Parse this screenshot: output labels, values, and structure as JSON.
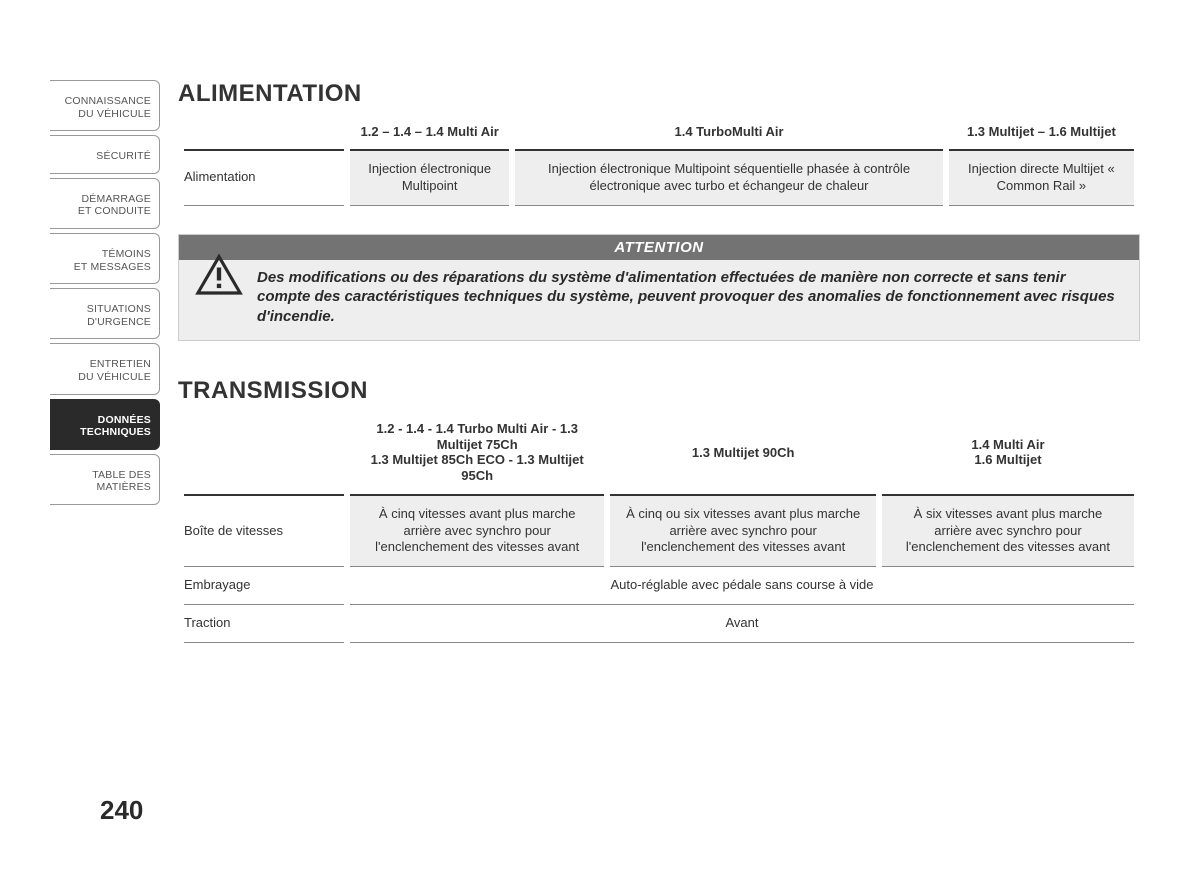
{
  "page_number": "240",
  "colors": {
    "text": "#333333",
    "bg": "#ffffff",
    "cell_bg": "#eeeeee",
    "banner_bg": "#737373",
    "banner_fg": "#ffffff",
    "active_tab_bg": "#2a2a2a",
    "active_tab_fg": "#ffffff",
    "rule": "#333333"
  },
  "typography": {
    "section_title_pt": 24,
    "body_pt": 13,
    "attention_pt": 15,
    "tab_pt": 10.5
  },
  "sidebar": {
    "tabs": [
      {
        "l1": "CONNAISSANCE",
        "l2": "DU VÉHICULE",
        "active": false
      },
      {
        "l1": "",
        "l2": "SÉCURITÉ",
        "active": false
      },
      {
        "l1": "DÉMARRAGE",
        "l2": "ET CONDUITE",
        "active": false
      },
      {
        "l1": "TÉMOINS",
        "l2": "ET MESSAGES",
        "active": false
      },
      {
        "l1": "SITUATIONS",
        "l2": "D'URGENCE",
        "active": false
      },
      {
        "l1": "ENTRETIEN",
        "l2": "DU VÉHICULE",
        "active": false
      },
      {
        "l1": "DONNÉES",
        "l2": "TECHNIQUES",
        "active": true
      },
      {
        "l1": "",
        "l2": "TABLE DES MATIÈRES",
        "active": false
      }
    ]
  },
  "alimentation": {
    "title": "ALIMENTATION",
    "type": "table",
    "headers": [
      "1.2 – 1.4 – 1.4 Multi Air",
      "1.4 TurboMulti Air",
      "1.3 Multijet – 1.6 Multijet"
    ],
    "row_label": "Alimentation",
    "cells": [
      "Injection électronique Multipoint",
      "Injection électronique Multipoint séquentielle phasée à contrôle électronique avec turbo et échangeur de chaleur",
      "Injection directe Multijet « Common Rail »"
    ]
  },
  "attention": {
    "banner": "ATTENTION",
    "icon_name": "warning-triangle",
    "text": "Des modifications ou des réparations du système d'alimentation effectuées de manière non correcte et sans tenir compte des caractéristiques techniques du système, peuvent provoquer des anomalies de fonctionnement avec risques d'incendie."
  },
  "transmission": {
    "title": "TRANSMISSION",
    "type": "table",
    "headers": [
      {
        "l1": "1.2 - 1.4 - 1.4 Turbo Multi Air - 1.3 Multijet 75Ch",
        "l2": "1.3 Multijet 85Ch ECO - 1.3 Multijet 95Ch"
      },
      {
        "l1": "1.3 Multijet 90Ch",
        "l2": ""
      },
      {
        "l1": "1.4 Multi Air",
        "l2": "1.6 Multijet"
      }
    ],
    "rows": [
      {
        "label": "Boîte de vitesses",
        "cells": [
          "À cinq vitesses avant plus marche arrière avec synchro pour l'enclenchement des vitesses avant",
          "À cinq ou six vitesses avant plus marche arrière avec synchro pour l'enclenchement des vitesses avant",
          "À six vitesses avant plus marche arrière avec synchro pour l'enclenchement des vitesses avant"
        ]
      },
      {
        "label": "Embrayage",
        "cells_merged": "Auto-réglable avec pédale sans course à vide"
      },
      {
        "label": "Traction",
        "cells_merged": "Avant"
      }
    ]
  }
}
